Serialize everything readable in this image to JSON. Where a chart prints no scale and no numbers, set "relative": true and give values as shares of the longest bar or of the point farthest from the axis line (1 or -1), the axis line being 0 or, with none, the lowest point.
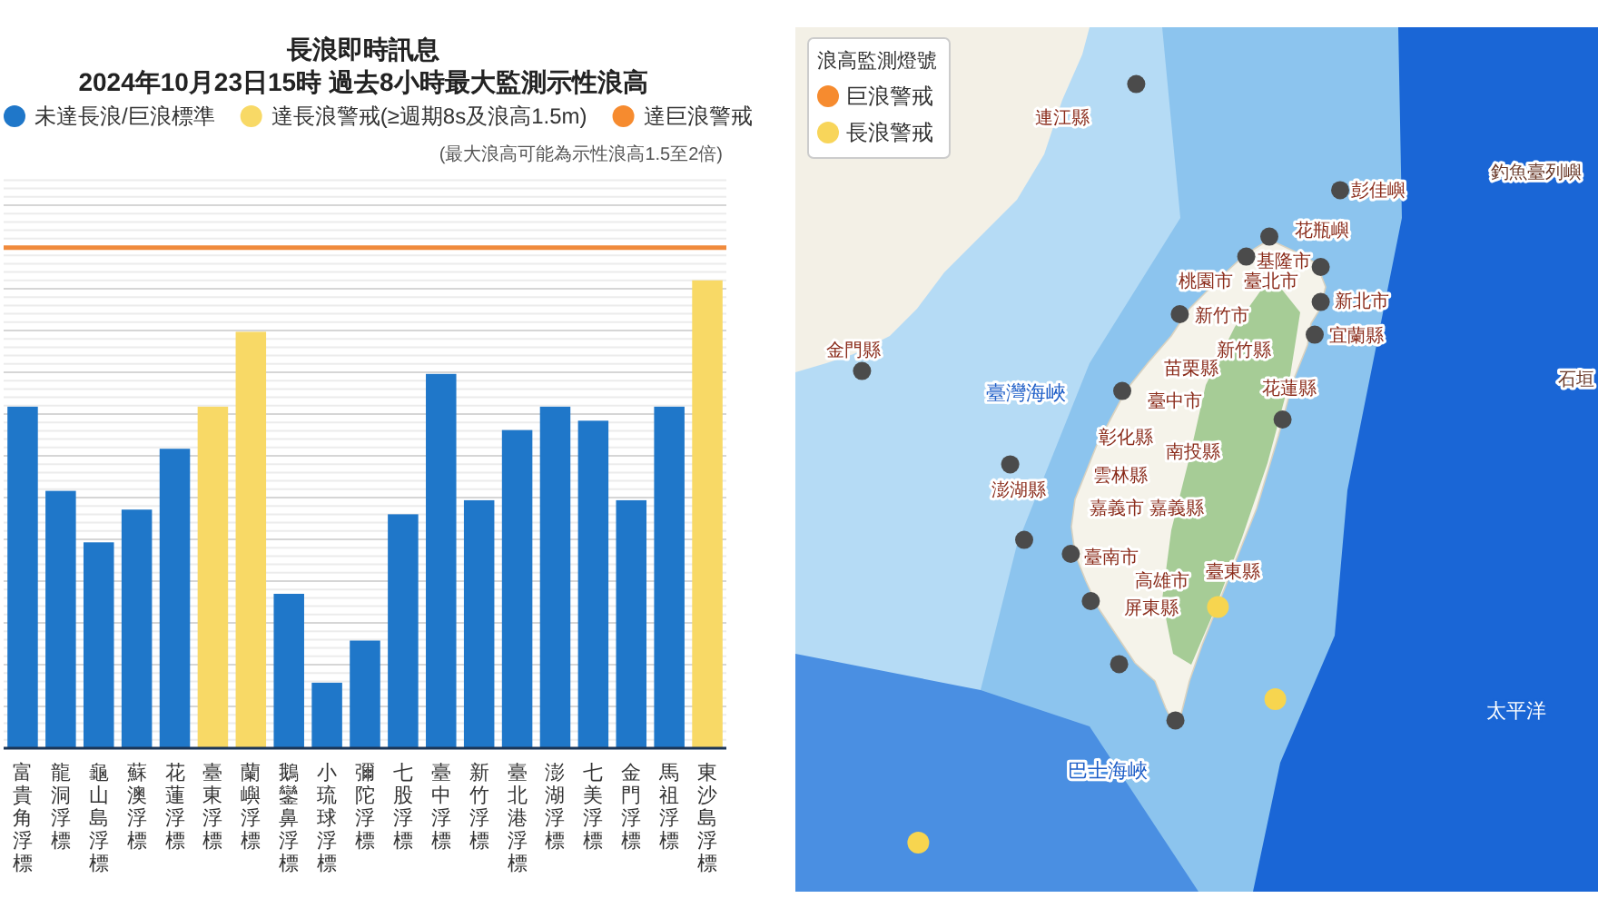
{
  "chart_data": [
    {
      "type": "bar",
      "title": "長浪即時訊息",
      "subtitle": "2024年10月23日15時 過去8小時最大監測示性浪高",
      "categories": [
        "富貴角浮標",
        "龍洞浮標",
        "龜山島浮標",
        "蘇澳浮標",
        "花蓮浮標",
        "臺東浮標",
        "蘭嶼浮標",
        "鵝鑾鼻浮標",
        "小琉球浮標",
        "彌陀浮標",
        "七股浮標",
        "臺中浮標",
        "新竹浮標",
        "臺北港浮標",
        "澎湖浮標",
        "七美浮標",
        "金門浮標",
        "馬祖浮標",
        "東沙島浮標"
      ],
      "relative": true,
      "stacked": true,
      "series": [
        {
          "name": "未達長浪/巨浪標準",
          "color": "#1f77c9",
          "values": [
            0.73,
            0.55,
            0.44,
            0.51,
            0.64,
            null,
            null,
            0.33,
            0.14,
            0.23,
            0.5,
            0.8,
            0.53,
            0.68,
            0.73,
            0.7,
            0.53,
            0.73,
            null
          ]
        },
        {
          "name": "達長浪警戒(≥週期8s及浪高1.5m)",
          "color": "#f8d966",
          "values": [
            null,
            null,
            null,
            null,
            null,
            0.73,
            0.89,
            null,
            null,
            null,
            null,
            null,
            null,
            null,
            null,
            null,
            null,
            null,
            1
          ]
        },
        {
          "name": "達巨浪警戒",
          "color": "#f68b2f",
          "values": [
            null,
            null,
            null,
            null,
            null,
            null,
            null,
            null,
            null,
            null,
            null,
            null,
            null,
            null,
            null,
            null,
            null,
            null,
            null
          ]
        }
      ],
      "ref_lines": [
        {
          "axis": "y",
          "value": 1.07,
          "color": "#f08a3c"
        }
      ],
      "grid": true,
      "legend": "top",
      "annotations": [
        "(最大浪高可能為示性浪高1.5至2倍)"
      ]
    },
    {
      "type": "other",
      "legend_title": "浪高監測燈號",
      "legend": "top left",
      "series": [
        {
          "name": "巨浪警戒",
          "color": "#f68b2f"
        },
        {
          "name": "長浪警戒",
          "color": "#f8d55a"
        }
      ],
      "annotations": [
        "連江縣",
        "金門縣",
        "臺灣海峽",
        "彭佳嶼",
        "花瓶嶼",
        "釣魚臺列嶼",
        "基隆市",
        "桃園市",
        "臺北市",
        "新北市",
        "新竹市",
        "宜蘭縣",
        "新竹縣",
        "苗栗縣",
        "臺中市",
        "花蓮縣",
        "彰化縣",
        "南投縣",
        "石垣",
        "雲林縣",
        "澎湖縣",
        "嘉義市",
        "嘉義縣",
        "臺南市",
        "高雄市",
        "臺東縣",
        "屏東縣",
        "巴士海峽",
        "太平洋"
      ]
    }
  ]
}
